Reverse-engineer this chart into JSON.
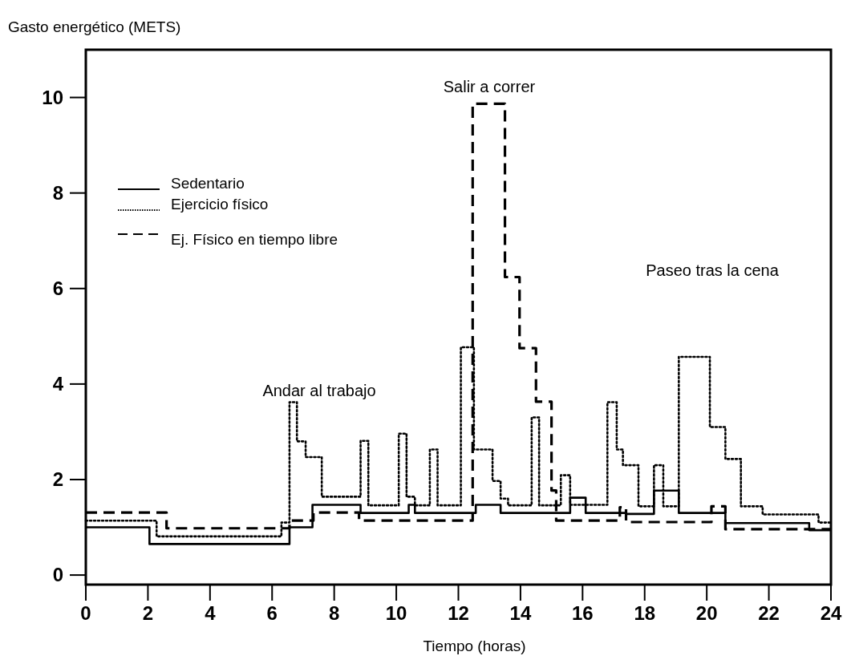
{
  "chart_data": {
    "type": "step",
    "ylabel": "Gasto energético (METS)",
    "xlabel": "Tiempo (horas)",
    "xlim": [
      0,
      24
    ],
    "ylim": [
      -0.2,
      11
    ],
    "xticks": [
      0,
      2,
      4,
      6,
      8,
      10,
      12,
      14,
      16,
      18,
      20,
      22,
      24
    ],
    "yticks": [
      0,
      2,
      4,
      6,
      8,
      10
    ],
    "grid": false,
    "legend": "top left",
    "series": [
      {
        "name": "Sedentario",
        "color": "#000000",
        "line_style": "solid",
        "x": [
          0,
          2.05,
          6.56,
          7.3,
          8.85,
          10.4,
          10.6,
          12.56,
          13.36,
          15.6,
          16.1,
          17.4,
          18.3,
          19.1,
          20.2,
          20.6,
          23.3,
          24
        ],
        "values": [
          1.0,
          0.65,
          1.0,
          1.47,
          1.3,
          1.47,
          1.3,
          1.47,
          1.3,
          1.62,
          1.3,
          1.28,
          1.77,
          1.3,
          1.3,
          1.09,
          0.94,
          0.94
        ]
      },
      {
        "name": "Ejercicio físico",
        "color": "#000000",
        "line_style": "dotted",
        "x": [
          0,
          2.28,
          6.3,
          6.56,
          6.8,
          7.08,
          7.6,
          8.85,
          9.1,
          10.08,
          10.33,
          10.6,
          11.08,
          11.33,
          12.08,
          12.5,
          13.1,
          13.36,
          13.6,
          14.36,
          14.6,
          15.3,
          15.6,
          16.8,
          17.1,
          17.3,
          17.8,
          18.3,
          18.6,
          19.1,
          20.1,
          20.6,
          21.1,
          21.8,
          23.6,
          24
        ],
        "values": [
          1.14,
          0.81,
          1.1,
          3.62,
          2.8,
          2.47,
          1.64,
          2.81,
          1.46,
          2.96,
          1.64,
          1.46,
          2.63,
          1.46,
          4.77,
          2.63,
          1.97,
          1.6,
          1.46,
          3.3,
          1.46,
          2.09,
          1.47,
          3.62,
          2.63,
          2.3,
          1.44,
          2.3,
          1.44,
          4.57,
          3.1,
          2.43,
          1.44,
          1.27,
          1.1,
          1.1
        ]
      },
      {
        "name": "Ej. Físico en tiempo libre",
        "color": "#000000",
        "line_style": "dashed",
        "x": [
          0,
          2.6,
          6.56,
          7.33,
          8.8,
          12.46,
          13.5,
          13.97,
          14.5,
          15.0,
          15.15,
          17.2,
          17.4,
          20.15,
          20.6,
          24
        ],
        "values": [
          1.31,
          0.98,
          1.14,
          1.31,
          1.14,
          9.87,
          6.24,
          4.75,
          3.63,
          1.77,
          1.14,
          1.42,
          1.11,
          1.44,
          0.96,
          0.96
        ]
      }
    ],
    "annotations": [
      "Andar al trabajo",
      "Salir a correr",
      "Paseo tras la cena"
    ]
  }
}
